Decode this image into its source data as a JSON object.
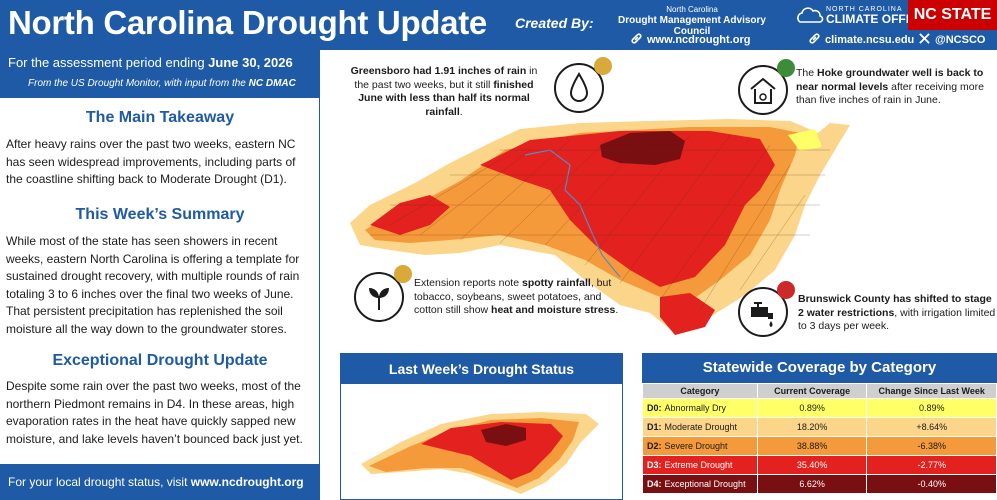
{
  "header": {
    "title": "North Carolina Drought Update",
    "created_by": "Created By:",
    "org_line1": "North Carolina",
    "org_line2": "Drought Management Advisory Council",
    "link1": "www.ncdrought.org",
    "link2": "climate.ncsu.edu",
    "link3": "@NCSCO",
    "climate_line1": "NORTH CAROLINA",
    "climate_line2": "CLIMATE OFFICE",
    "ncstate": "NC STATE"
  },
  "left": {
    "period_prefix": "For the assessment period ending ",
    "period_date": "June 30, 2026",
    "source_prefix": "From the US Drought Monitor, with input from the ",
    "source_org": "NC DMAC",
    "sections": [
      {
        "heading": "The Main Takeaway",
        "body": "After heavy rains over the past two weeks, eastern NC has seen widespread improvements, including parts of the coastline shifting back to Moderate Drought (D1)."
      },
      {
        "heading": "This Week’s Summary",
        "body": "While most of the state has seen showers in recent weeks, eastern North Carolina is offering a template for sustained drought recovery, with multiple rounds of rain totaling 3 to 6 inches over the final two weeks of June. That persistent precipitation has replenished the soil moisture all the way down to the groundwater stores."
      },
      {
        "heading": "Exceptional Drought Update",
        "body": "Despite some rain over the past two weeks, most of the northern Piedmont remains in D4. In these areas, high evaporation rates in the heat have quickly sapped new moisture, and lake levels haven’t bounced back just yet."
      }
    ],
    "footer_prefix": "For your local drought status, visit ",
    "footer_link": "www.ncdrought.org"
  },
  "callouts": {
    "greensboro": {
      "b1": "Greensboro had 1.91 inches of rain",
      "t1": " in the past two weeks, but it still ",
      "b2": "finished June with less than half its normal rainfall",
      "t2": "."
    },
    "hoke": {
      "t1": "The ",
      "b1": "Hoke groundwater well is back to near normal levels",
      "t2": " after receiving more than five inches of rain in June."
    },
    "extension": {
      "t1": "Extension reports note ",
      "b1": "spotty rainfall",
      "t2": ", but tobacco, soybeans, sweet potatoes, and cotton still show ",
      "b2": "heat and moisture stress",
      "t3": "."
    },
    "brunswick": {
      "b1": "Brunswick County has shifted to stage 2 water restrictions",
      "t1": ", with irrigation limited to 3 days per week."
    },
    "icons": {
      "greensboro": "water-drop-icon",
      "hoke": "groundwater-well-icon",
      "extension": "crop-sprout-icon",
      "brunswick": "water-faucet-icon"
    }
  },
  "last_week": {
    "title": "Last Week’s Drought Status"
  },
  "coverage": {
    "title": "Statewide Coverage by Category",
    "columns": [
      "Category",
      "Current Coverage",
      "Change Since Last Week"
    ],
    "rows": [
      {
        "code": "D0:",
        "name": "Abnormally Dry",
        "current": "0.89%",
        "change": "0.89%",
        "color": "#ffff66",
        "text": "#1b1b1b"
      },
      {
        "code": "D1:",
        "name": "Moderate Drought",
        "current": "18.20%",
        "change": "+8.64%",
        "color": "#fbd58a",
        "text": "#1b1b1b"
      },
      {
        "code": "D2:",
        "name": "Severe Drought",
        "current": "38.88%",
        "change": "-6.38%",
        "color": "#f59a3b",
        "text": "#1b1b1b"
      },
      {
        "code": "D3:",
        "name": "Extreme Drought",
        "current": "35.40%",
        "change": "-2.77%",
        "color": "#e3221f",
        "text": "#ffffff"
      },
      {
        "code": "D4:",
        "name": "Exceptional Drought",
        "current": "6.62%",
        "change": "-0.40%",
        "color": "#7a0f12",
        "text": "#ffffff"
      }
    ]
  },
  "colors": {
    "brand_blue": "#1f5aa6",
    "ncstate_red": "#cc0000",
    "d0": "#ffff66",
    "d1": "#fbd58a",
    "d2": "#f59a3b",
    "d3": "#e3221f",
    "d4": "#7a0f12"
  }
}
